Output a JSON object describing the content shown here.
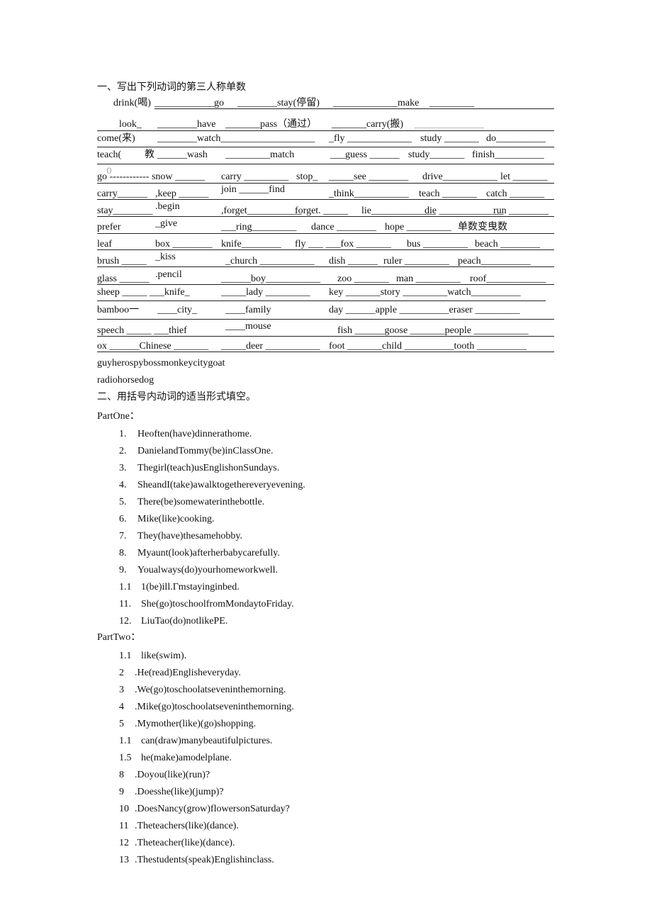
{
  "section1": {
    "title": "一、写出下列动词的第三人称单数",
    "rows": [
      [
        "drink(喝)",
        "____________go",
        "________stay(停留)",
        "_____________make",
        "_________"
      ],
      [
        "look_",
        "________have",
        "_______pass（通过）",
        "_______carry(搬)",
        "______________"
      ],
      [
        "come(来)",
        "________watch___________________",
        "_fly _____________",
        "study _______",
        "do__________"
      ],
      [
        "teach(",
        "教",
        "______wash",
        "_________match",
        "___guess ______",
        "study_______",
        "finish__________"
      ],
      [
        "go ------------ snow ______",
        "carry _________",
        "stop_",
        "_____see ________",
        "drive___________",
        "let _______"
      ],
      [
        "carry______",
        ",keep ______",
        "join ______find",
        "_think___________",
        "teach _______",
        "catch _______"
      ],
      [
        "stay________",
        ".begin",
        ",forget___________",
        "forget. _____",
        "lie_____________",
        "die _____________",
        "run ________"
      ],
      [
        "prefer",
        "_give",
        "___ring_________",
        "dance ________",
        "hope _________",
        "单数变曳数"
      ],
      [
        "leaf",
        "box ________",
        "knife________",
        "fly ___ ___fox _______",
        "bus _________",
        "beach ________"
      ],
      [
        "brush _____",
        "_kiss",
        "_church ___________",
        "dish ______",
        "ruler _________",
        "peach__________"
      ],
      [
        "glass ______",
        ".pencil",
        "______boy___________",
        "zoo _______",
        "man _________",
        "roof____________"
      ],
      [
        "sheep _____ ___knife_",
        "_____lady _________",
        "key _______story _________watch__________"
      ],
      [
        "bamboo一",
        "____city_",
        "____family",
        "day ______apple __________eraser _________"
      ],
      [
        "speech _____ ___thief",
        "____mouse",
        "fish ______goose _______people ___________"
      ],
      [
        "ox ______Chinese _______",
        "_____deer ___________",
        "foot _______child __________tooth __________"
      ]
    ],
    "teach_fragment": "（）",
    "extra_lines": [
      "guyherospybossmonkeycitygoat",
      "radiohorsedog"
    ]
  },
  "section2": {
    "title": "二、用括号内动词的适当形式填空。",
    "part_one": {
      "label": "PartOne：",
      "items": [
        {
          "n": "1.",
          "text": "Heoften(have)dinnerathome."
        },
        {
          "n": "2.",
          "text": "DanielandTommy(be)inClassOne."
        },
        {
          "n": "3.",
          "text": "Thegirl(teach)usEnglishonSundays."
        },
        {
          "n": "4.",
          "text": "SheandI(take)awalktogethereveryevening."
        },
        {
          "n": "5.",
          "text": "There(be)somewaterinthebottle."
        },
        {
          "n": "6.",
          "text": "Mike(like)cooking."
        },
        {
          "n": "7.",
          "text": "They(have)thesamehobby."
        },
        {
          "n": "8.",
          "text": "Myaunt(look)afterherbabycarefully."
        },
        {
          "n": "9.",
          "text": "Youalways(do)yourhomeworkwell."
        },
        {
          "n": "1.1",
          "text": "1(be)ill.Γmstayinginbed."
        },
        {
          "n": "11.",
          "text": "She(go)toschoolfromMondaytoFriday."
        },
        {
          "n": "12.",
          "text": "LiuTao(do)notlikePE."
        }
      ]
    },
    "part_two": {
      "label": "PartTwo：",
      "items": [
        {
          "n": "1.1",
          "text": "like(swim)."
        },
        {
          "n": "2",
          "text": ".He(read)Englisheveryday."
        },
        {
          "n": "3",
          "text": ".We(go)toschoolatseveninthemorning."
        },
        {
          "n": "4",
          "text": ".Mike(go)toschoolatseveninthemorning."
        },
        {
          "n": "5",
          "text": ".Mymother(like)(go)shopping."
        },
        {
          "n": "1.1",
          "text": "can(draw)manybeautifulpictures."
        },
        {
          "n": "1.5",
          "text": "he(make)amodelplane."
        },
        {
          "n": "8",
          "text": ".Doyou(like)(run)?"
        },
        {
          "n": "9",
          "text": ".Doesshe(like)(jump)?"
        },
        {
          "n": "10",
          "text": ".DoesNancy(grow)flowersonSaturday?"
        },
        {
          "n": "11",
          "text": ".Theteachers(like)(dance)."
        },
        {
          "n": "12",
          "text": ".Theteacher(like)(dance)."
        },
        {
          "n": "13",
          "text": ".Thestudents(speak)Englishinclass."
        }
      ]
    }
  }
}
